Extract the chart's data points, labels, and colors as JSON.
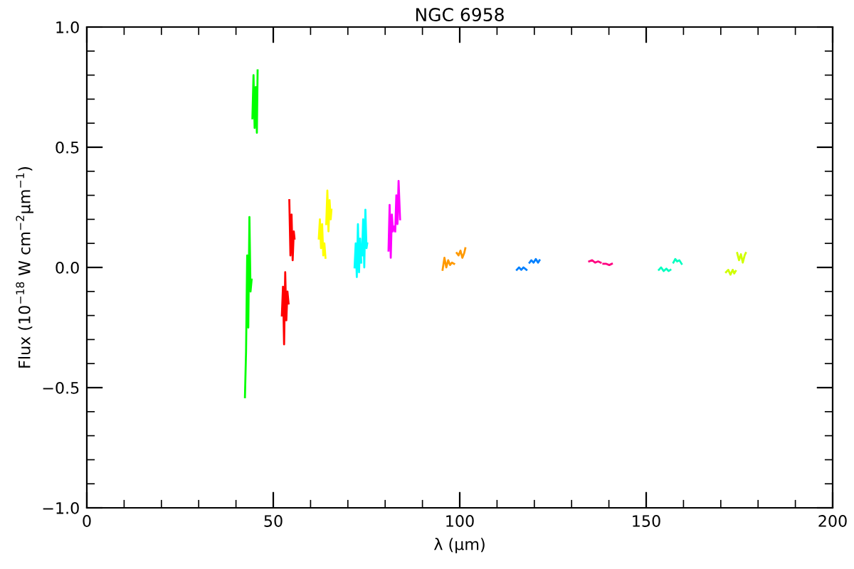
{
  "chart_data": {
    "type": "line",
    "title": "NGC 6958",
    "xlabel": "λ (μm)",
    "ylabel": "Flux (10$^{−18}$ W cm$^{−2}$μm$^{−1}$)",
    "xlim": [
      0,
      200
    ],
    "xticks": [
      0,
      50,
      100,
      150,
      200
    ],
    "ylim": [
      -1.0,
      1.0
    ],
    "yticks": [
      {
        "value": -1.0,
        "label": "−1.0"
      },
      {
        "value": -0.5,
        "label": "−0.5"
      },
      {
        "value": 0.0,
        "label": "0.0"
      },
      {
        "value": 0.5,
        "label": "0.5"
      },
      {
        "value": 1.0,
        "label": "1.0"
      }
    ],
    "grid": false,
    "legend": false,
    "marker": "none",
    "line_style": "solid",
    "series": [
      {
        "color": "#00ff00",
        "x": [
          42.4,
          42.7,
          43.0,
          43.3,
          43.6,
          43.9,
          44.2,
          44.3,
          44.4,
          44.7,
          45.0,
          45.3,
          45.6,
          45.8
        ],
        "values": [
          -0.54,
          -0.35,
          0.05,
          -0.25,
          0.21,
          -0.1,
          -0.05,
          null,
          0.62,
          0.8,
          0.58,
          0.75,
          0.56,
          0.82
        ]
      },
      {
        "color": "#ff0000",
        "x": [
          52.3,
          52.6,
          52.9,
          53.2,
          53.5,
          53.8,
          54.1,
          54.2,
          54.3,
          54.6,
          54.9,
          55.2,
          55.5,
          55.7
        ],
        "values": [
          -0.2,
          -0.08,
          -0.32,
          -0.02,
          -0.22,
          -0.1,
          -0.15,
          null,
          0.28,
          0.05,
          0.22,
          0.03,
          0.15,
          0.12
        ]
      },
      {
        "color": "#ffff00",
        "x": [
          62.2,
          62.5,
          62.8,
          63.1,
          63.4,
          63.7,
          64.0,
          64.1,
          64.2,
          64.5,
          64.8,
          65.1,
          65.4,
          65.6
        ],
        "values": [
          0.12,
          0.2,
          0.08,
          0.18,
          0.05,
          0.1,
          0.04,
          null,
          0.18,
          0.32,
          0.15,
          0.28,
          0.2,
          0.24
        ]
      },
      {
        "color": "#00ffff",
        "x": [
          71.8,
          72.1,
          72.4,
          72.7,
          73.0,
          73.3,
          73.6,
          73.7,
          73.8,
          74.1,
          74.4,
          74.7,
          75.0,
          75.2
        ],
        "values": [
          0.0,
          0.1,
          -0.04,
          0.18,
          -0.02,
          0.12,
          0.02,
          null,
          0.05,
          0.2,
          0.0,
          0.24,
          0.08,
          0.1
        ]
      },
      {
        "color": "#ff00ff",
        "x": [
          80.9,
          81.2,
          81.5,
          81.8,
          82.1,
          82.4,
          82.5,
          82.7,
          83.0,
          83.3,
          83.6,
          84.0
        ],
        "values": [
          0.07,
          0.26,
          0.04,
          0.22,
          0.15,
          0.17,
          null,
          0.15,
          0.3,
          0.18,
          0.36,
          0.2
        ]
      },
      {
        "color": "#ff9900",
        "x": [
          95.4,
          95.9,
          96.4,
          96.9,
          97.4,
          97.9,
          98.5,
          98.8,
          99.2,
          99.7,
          100.2,
          100.7,
          101.2,
          101.5
        ],
        "values": [
          -0.01,
          0.04,
          0.0,
          0.03,
          0.01,
          0.02,
          0.015,
          null,
          0.06,
          0.05,
          0.07,
          0.04,
          0.06,
          0.08
        ]
      },
      {
        "color": "#0080ff",
        "x": [
          115.3,
          115.9,
          116.5,
          117.1,
          117.9,
          118.3,
          118.7,
          119.2,
          119.8,
          120.4,
          121.0,
          121.4
        ],
        "values": [
          -0.01,
          0.0,
          -0.01,
          0.0,
          -0.01,
          null,
          0.02,
          0.03,
          0.02,
          0.035,
          0.02,
          0.03
        ]
      },
      {
        "color": "#ff0080",
        "x": [
          134.7,
          135.5,
          136.3,
          137.1,
          137.8,
          138.1,
          138.5,
          139.3,
          140.1,
          140.8
        ],
        "values": [
          0.025,
          0.03,
          0.02,
          0.025,
          0.02,
          null,
          0.015,
          0.015,
          0.01,
          0.015
        ]
      },
      {
        "color": "#00ffc0",
        "x": [
          153.4,
          154.0,
          154.7,
          155.4,
          156.0,
          156.5,
          156.9,
          157.3,
          157.8,
          158.3,
          158.9,
          159.5
        ],
        "values": [
          -0.01,
          0.0,
          -0.015,
          -0.005,
          -0.015,
          -0.01,
          null,
          0.02,
          0.035,
          0.025,
          0.03,
          0.015
        ]
      },
      {
        "color": "#d0ff00",
        "x": [
          171.4,
          172.0,
          172.6,
          173.2,
          173.6,
          174.0,
          174.2,
          174.4,
          174.9,
          175.4,
          175.9,
          176.4,
          176.7
        ],
        "values": [
          -0.02,
          -0.01,
          -0.03,
          -0.01,
          -0.025,
          -0.015,
          null,
          0.06,
          0.03,
          0.055,
          0.02,
          0.05,
          0.06
        ]
      }
    ]
  }
}
